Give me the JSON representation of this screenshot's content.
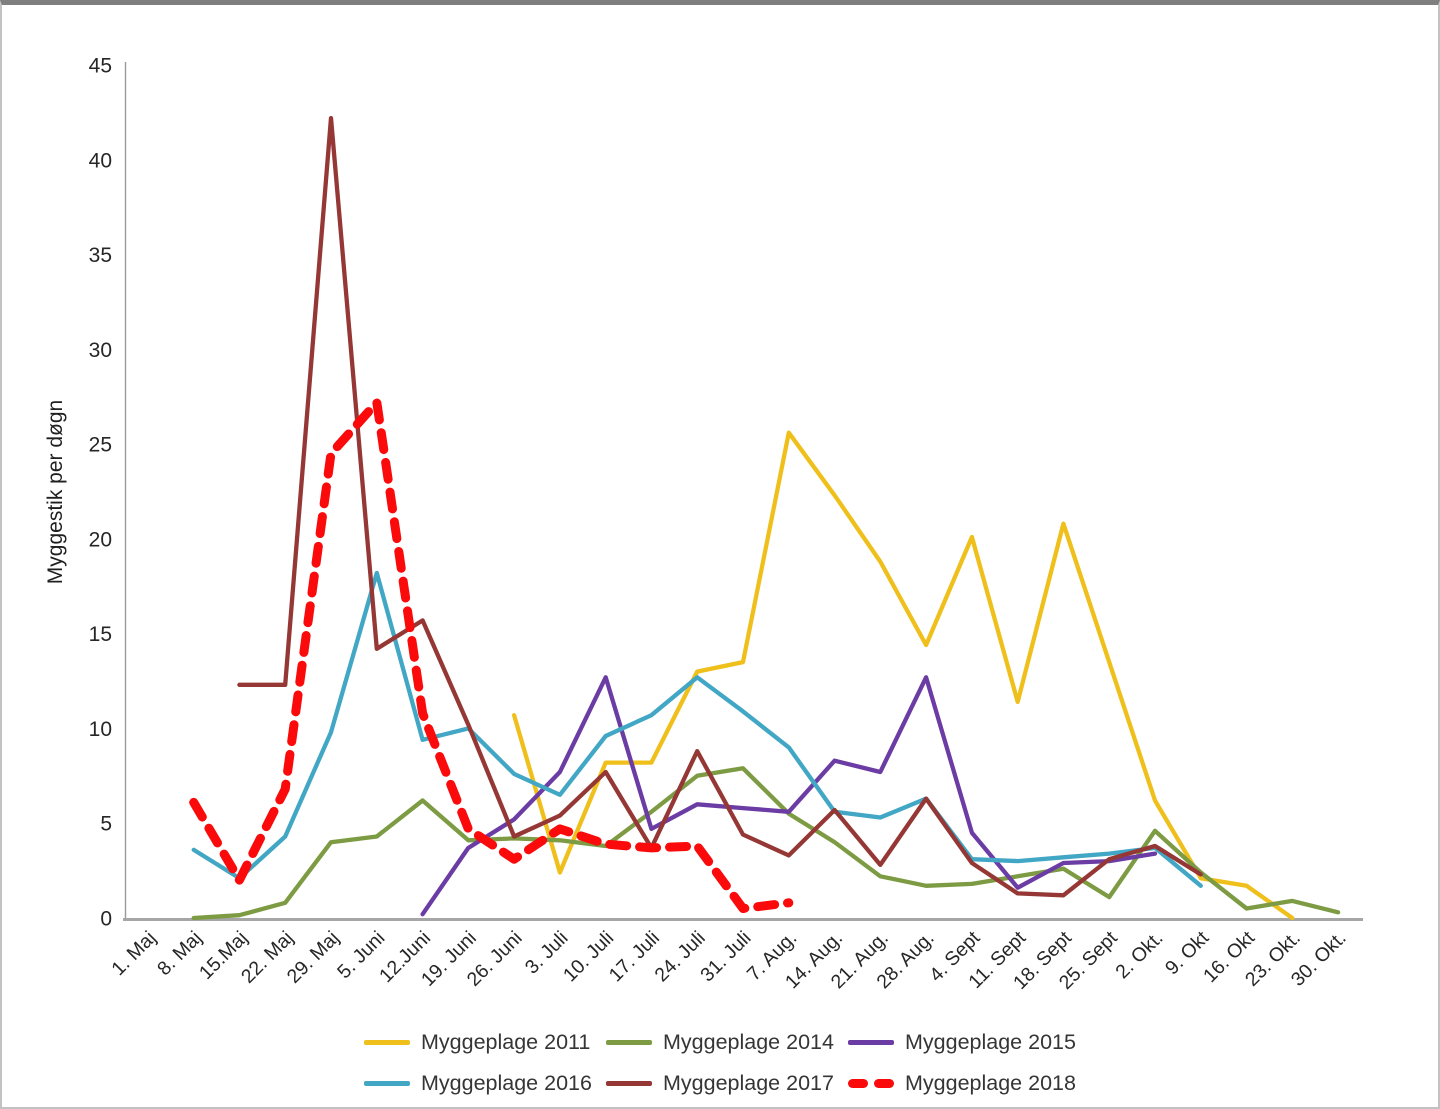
{
  "chart_data": {
    "type": "line",
    "title": "",
    "xlabel": "",
    "ylabel": "Myggestik per døgn",
    "ylim": [
      0,
      45
    ],
    "ytick_step": 5,
    "grid": false,
    "legend_position": "bottom",
    "background": "#ffffff",
    "axis_color": "#a6a6a6",
    "text_color": "#262626",
    "categories": [
      "1. Maj",
      "8. Maj",
      "15.Maj",
      "22. Maj",
      "29. Maj",
      "5. Juni",
      "12.Juni",
      "19. Juni",
      "26. Juni",
      "3. Juli",
      "10. Juli",
      "17. Juli",
      "24. Juli",
      "31. Juli",
      "7. Aug.",
      "14. Aug.",
      "21. Aug.",
      "28. Aug.",
      "4. Sept",
      "11. Sept",
      "18. Sept",
      "25. Sept",
      "2. Okt.",
      "9. Okt",
      "16. Okt",
      "23. Okt.",
      "30. Okt."
    ],
    "series": [
      {
        "name": "Myggeplage 2011",
        "color": "#efc01c",
        "style": "solid",
        "values": [
          null,
          null,
          null,
          null,
          null,
          null,
          null,
          null,
          10.7,
          2.4,
          8.2,
          8.2,
          13.0,
          13.5,
          25.6,
          22.3,
          18.8,
          14.4,
          20.1,
          11.4,
          20.8,
          13.5,
          6.2,
          2.1,
          1.7,
          0,
          null
        ]
      },
      {
        "name": "Myggeplage 2014",
        "color": "#7d9b43",
        "style": "solid",
        "values": [
          null,
          0,
          0.15,
          0.8,
          4.0,
          4.3,
          6.2,
          4.1,
          4.2,
          4.1,
          3.8,
          5.6,
          7.5,
          7.9,
          5.5,
          4.0,
          2.2,
          1.7,
          1.8,
          2.2,
          2.6,
          1.1,
          4.6,
          2.4,
          0.5,
          0.9,
          0.3
        ]
      },
      {
        "name": "Myggeplage 2015",
        "color": "#6b3ca4",
        "style": "solid",
        "values": [
          null,
          null,
          null,
          null,
          null,
          null,
          0.2,
          3.7,
          5.2,
          7.7,
          12.7,
          4.7,
          6.0,
          5.8,
          5.6,
          8.3,
          7.7,
          12.7,
          4.5,
          1.6,
          2.9,
          3.0,
          3.4,
          null,
          null,
          null,
          null
        ]
      },
      {
        "name": "Myggeplage 2016",
        "color": "#41a7c5",
        "style": "solid",
        "values": [
          null,
          3.6,
          2.1,
          4.3,
          9.8,
          18.2,
          9.4,
          10.0,
          7.6,
          6.5,
          9.6,
          10.7,
          12.7,
          10.9,
          9.0,
          5.6,
          5.3,
          6.3,
          3.1,
          3.0,
          3.2,
          3.4,
          3.7,
          1.7,
          null,
          null,
          null
        ]
      },
      {
        "name": "Myggeplage 2017",
        "color": "#953735",
        "style": "solid",
        "values": [
          null,
          null,
          12.3,
          12.3,
          42.2,
          14.2,
          15.7,
          10.2,
          4.3,
          5.4,
          7.7,
          3.7,
          8.8,
          4.4,
          3.3,
          5.7,
          2.8,
          6.3,
          2.9,
          1.3,
          1.2,
          3.1,
          3.8,
          2.3,
          null,
          null,
          null
        ]
      },
      {
        "name": "Myggeplage 2018",
        "color": "#fa0a0a",
        "style": "dashed",
        "values": [
          null,
          6.1,
          2.0,
          6.8,
          24.5,
          27.2,
          10.8,
          4.7,
          3.1,
          4.7,
          3.9,
          3.7,
          3.8,
          0.5,
          0.8,
          null,
          null,
          null,
          null,
          null,
          null,
          null,
          null,
          null,
          null,
          null,
          null
        ]
      }
    ]
  }
}
